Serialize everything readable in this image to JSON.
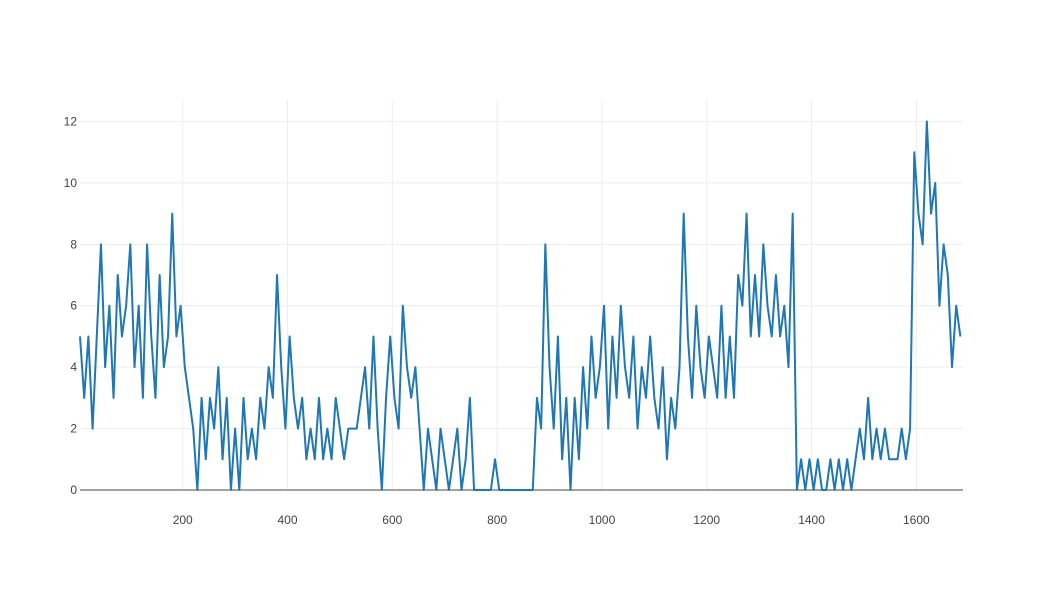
{
  "chart_data": {
    "type": "line",
    "x": [
      4,
      12,
      20,
      28,
      36,
      44,
      52,
      60,
      68,
      76,
      84,
      92,
      100,
      108,
      116,
      124,
      132,
      140,
      148,
      156,
      164,
      172,
      180,
      188,
      196,
      204,
      212,
      220,
      228,
      236,
      244,
      252,
      260,
      268,
      276,
      284,
      292,
      300,
      308,
      316,
      324,
      332,
      340,
      348,
      356,
      364,
      372,
      380,
      388,
      396,
      404,
      412,
      420,
      428,
      436,
      444,
      452,
      460,
      468,
      476,
      484,
      492,
      500,
      508,
      516,
      524,
      532,
      540,
      548,
      556,
      564,
      572,
      580,
      588,
      596,
      604,
      612,
      620,
      628,
      636,
      644,
      652,
      660,
      668,
      676,
      684,
      692,
      700,
      708,
      716,
      724,
      732,
      740,
      748,
      756,
      764,
      772,
      780,
      788,
      796,
      804,
      812,
      820,
      828,
      836,
      844,
      852,
      860,
      868,
      876,
      884,
      892,
      900,
      908,
      916,
      924,
      932,
      940,
      948,
      956,
      964,
      972,
      980,
      988,
      996,
      1004,
      1012,
      1020,
      1028,
      1036,
      1044,
      1052,
      1060,
      1068,
      1076,
      1084,
      1092,
      1100,
      1108,
      1116,
      1124,
      1132,
      1140,
      1148,
      1156,
      1164,
      1172,
      1180,
      1188,
      1196,
      1204,
      1212,
      1220,
      1228,
      1236,
      1244,
      1252,
      1260,
      1268,
      1276,
      1284,
      1292,
      1300,
      1308,
      1316,
      1324,
      1332,
      1340,
      1348,
      1356,
      1364,
      1372,
      1380,
      1388,
      1396,
      1404,
      1412,
      1420,
      1428,
      1436,
      1444,
      1452,
      1460,
      1468,
      1476,
      1484,
      1492,
      1500,
      1508,
      1516,
      1524,
      1532,
      1540,
      1548,
      1556,
      1564,
      1572,
      1580,
      1588,
      1596,
      1604,
      1612,
      1620,
      1628,
      1636,
      1644,
      1652,
      1660,
      1668,
      1676,
      1684
    ],
    "series": [
      {
        "color": "#1f77b4",
        "values": [
          5,
          3,
          5,
          2,
          5,
          8,
          4,
          6,
          3,
          7,
          5,
          6,
          8,
          4,
          6,
          3,
          8,
          5,
          3,
          7,
          4,
          5,
          9,
          5,
          6,
          4,
          3,
          2,
          0,
          3,
          1,
          3,
          2,
          4,
          1,
          3,
          0,
          2,
          0,
          3,
          1,
          2,
          1,
          3,
          2,
          4,
          3,
          7,
          4,
          2,
          5,
          3,
          2,
          3,
          1,
          2,
          1,
          3,
          1,
          2,
          1,
          3,
          2,
          1,
          2,
          2,
          2,
          3,
          4,
          2,
          5,
          2,
          0,
          3,
          5,
          3,
          2,
          6,
          4,
          3,
          4,
          2,
          0,
          2,
          1,
          0,
          2,
          1,
          0,
          1,
          2,
          0,
          1,
          3,
          0,
          0,
          0,
          0,
          0,
          1,
          0,
          0,
          0,
          0,
          0,
          0,
          0,
          0,
          0,
          3,
          2,
          8,
          4,
          2,
          5,
          1,
          3,
          0,
          3,
          1,
          4,
          2,
          5,
          3,
          4,
          6,
          2,
          5,
          3,
          6,
          4,
          3,
          5,
          2,
          4,
          3,
          5,
          3,
          2,
          4,
          1,
          3,
          2,
          4,
          9,
          5,
          3,
          6,
          4,
          3,
          5,
          4,
          3,
          6,
          3,
          5,
          3,
          7,
          6,
          9,
          5,
          7,
          5,
          8,
          6,
          5,
          7,
          5,
          6,
          4,
          9,
          0,
          1,
          0,
          1,
          0,
          1,
          0,
          0,
          1,
          0,
          1,
          0,
          1,
          0,
          1,
          2,
          1,
          3,
          1,
          2,
          1,
          2,
          1,
          1,
          1,
          2,
          1,
          2,
          11,
          9,
          8,
          12,
          9,
          10,
          6,
          8,
          7,
          4,
          6,
          5
        ]
      }
    ],
    "xlim": [
      4,
      1689
    ],
    "ylim": [
      0,
      12.7
    ],
    "xticks": [
      200,
      400,
      600,
      800,
      1000,
      1200,
      1400,
      1600
    ],
    "yticks": [
      0,
      2,
      4,
      6,
      8,
      10,
      12
    ],
    "grid": true
  }
}
